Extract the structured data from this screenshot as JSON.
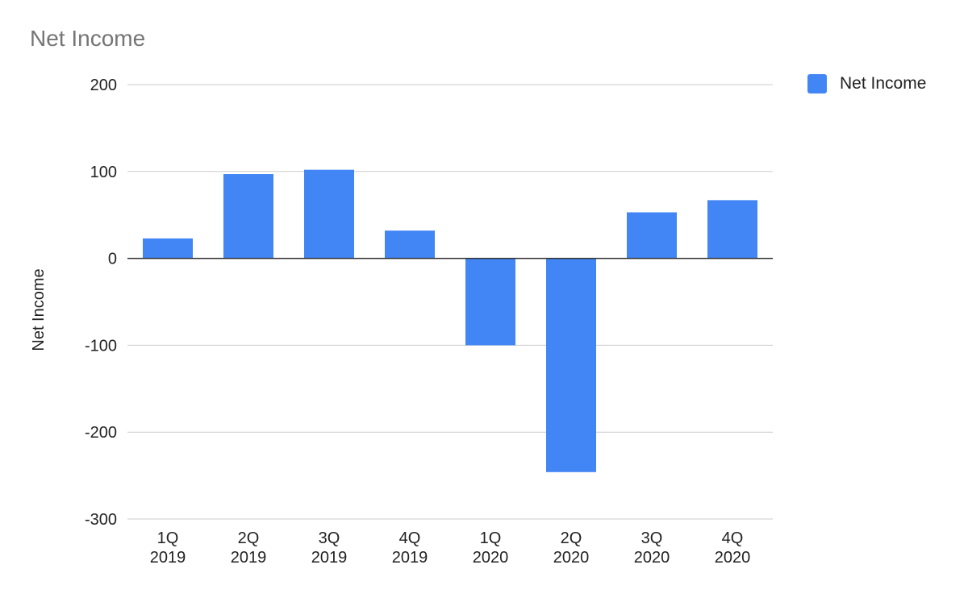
{
  "chart_data": {
    "type": "bar",
    "title": "Net Income",
    "xlabel": "",
    "ylabel": "Net Income",
    "categories": [
      "1Q\n2019",
      "2Q\n2019",
      "3Q\n2019",
      "4Q\n2019",
      "1Q\n2020",
      "2Q\n2020",
      "3Q\n2020",
      "4Q\n2020"
    ],
    "series": [
      {
        "name": "Net Income",
        "values": [
          23,
          97,
          102,
          32,
          -100,
          -246,
          53,
          67
        ],
        "color": "#4285f4"
      }
    ],
    "ylim": [
      -300,
      200
    ],
    "yticks": [
      200,
      100,
      0,
      -100,
      -200,
      -300
    ],
    "grid": true,
    "legend_position": "top-right"
  }
}
